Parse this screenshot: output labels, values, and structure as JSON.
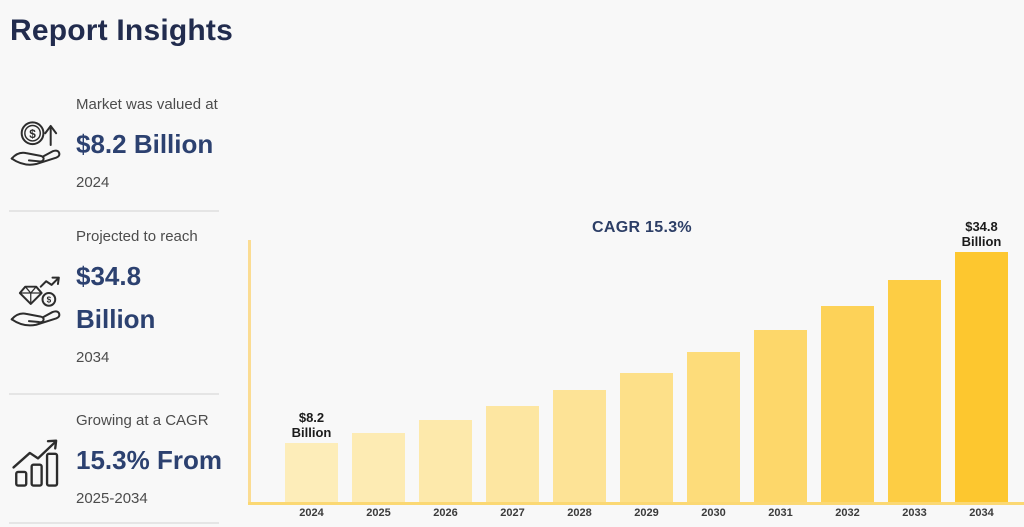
{
  "page": {
    "title": "Report Insights",
    "background_color": "#f8f8f8",
    "title_color": "#222c4e",
    "accent_navy": "#2c4170",
    "accent_yellow": "#fdc72f"
  },
  "sidebar": {
    "stats": [
      {
        "icon": "money-growth-hand-icon",
        "label": "Market was valued at",
        "value": "$8.2 Billion",
        "period": "2024"
      },
      {
        "icon": "diamond-hand-icon",
        "label": "Projected to reach",
        "value": "$34.8\nBillion",
        "period": "2034"
      },
      {
        "icon": "growth-bars-icon",
        "label": "Growing at a CAGR",
        "value": "15.3% From",
        "period": "2025-2034"
      }
    ]
  },
  "chart": {
    "cagr_annotation": "CAGR 15.3%"
  },
  "chart_data": {
    "type": "bar",
    "title": "",
    "xlabel": "",
    "ylabel": "",
    "unit": "USD Billion",
    "grid": false,
    "legend": false,
    "ylim": [
      0,
      34.8
    ],
    "categories": [
      "2024",
      "2025",
      "2026",
      "2027",
      "2028",
      "2029",
      "2030",
      "2031",
      "2032",
      "2033",
      "2034"
    ],
    "values": [
      8.2,
      9.6,
      11.4,
      13.3,
      15.6,
      17.9,
      20.9,
      23.9,
      27.3,
      30.9,
      34.8
    ],
    "value_labels": {
      "2024": "$8.2\nBillion",
      "2034": "$34.8\nBillion"
    },
    "annotations": [
      "CAGR 15.3%",
      "$8.2 Billion",
      "$34.8 Billion"
    ],
    "bar_colors": [
      "#FDEDB9",
      "#FDEBB3",
      "#FDE9AB",
      "#FDE6A1",
      "#FDE396",
      "#FDE089",
      "#FDDC7A",
      "#FDD76A",
      "#FDD258",
      "#FDCD44",
      "#FDC72F"
    ],
    "y_axis_color": "#fbdc92",
    "x_axis_color": "#fbd873",
    "tick_label_color": "#3b3b3b",
    "bar_label_color": "#1b1b1b"
  }
}
